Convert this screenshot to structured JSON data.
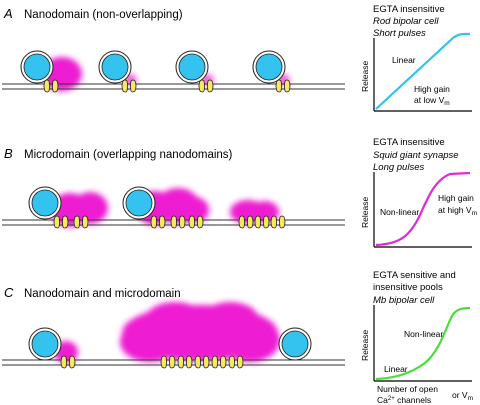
{
  "colors": {
    "vesicle": "#34c3ee",
    "calcium_cloud": "#ee1bd2",
    "channel": "#f6e860",
    "curve_A": "#34c3ee",
    "curve_B": "#e02ad8",
    "curve_C": "#4ade3a"
  },
  "icons": {
    "vesicle": "synaptic-vesicle-icon",
    "channel": "calcium-channel-icon"
  },
  "panels": [
    {
      "letter": "A",
      "title": "Nanodomain (non-overlapping)",
      "graph": {
        "heading": "EGTA insensitive",
        "sub1": "Rod bipolar cell",
        "sub2": "Short pulses",
        "ylabel": "Release",
        "label1": "Linear",
        "label2a": "High gain",
        "label2b": "at low V",
        "label2b_sub": "m",
        "curve": "linear"
      }
    },
    {
      "letter": "B",
      "title": "Microdomain (overlapping nanodomains)",
      "graph": {
        "heading": "EGTA insensitive",
        "sub1": "Squid giant synapse",
        "sub2": "Long pulses",
        "ylabel": "Release",
        "label1": "Non-linear",
        "label2a": "High gain",
        "label2b": "at high V",
        "label2b_sub": "m",
        "curve": "sigmoid"
      }
    },
    {
      "letter": "C",
      "title": "Nanodomain and microdomain",
      "graph": {
        "heading1": "EGTA sensitive and",
        "heading2": "insensitive pools",
        "sub1": "Mb bipolar cell",
        "ylabel": "Release",
        "label1": "Non-linear",
        "label2": "Linear",
        "curve": "linear-then-nonlinear"
      }
    }
  ],
  "xaxis": {
    "line1": "Number of open",
    "line2_pre": "Ca",
    "line2_sup": "2+",
    "line2_post": " channels",
    "or": "or V",
    "or_sub": "m"
  }
}
